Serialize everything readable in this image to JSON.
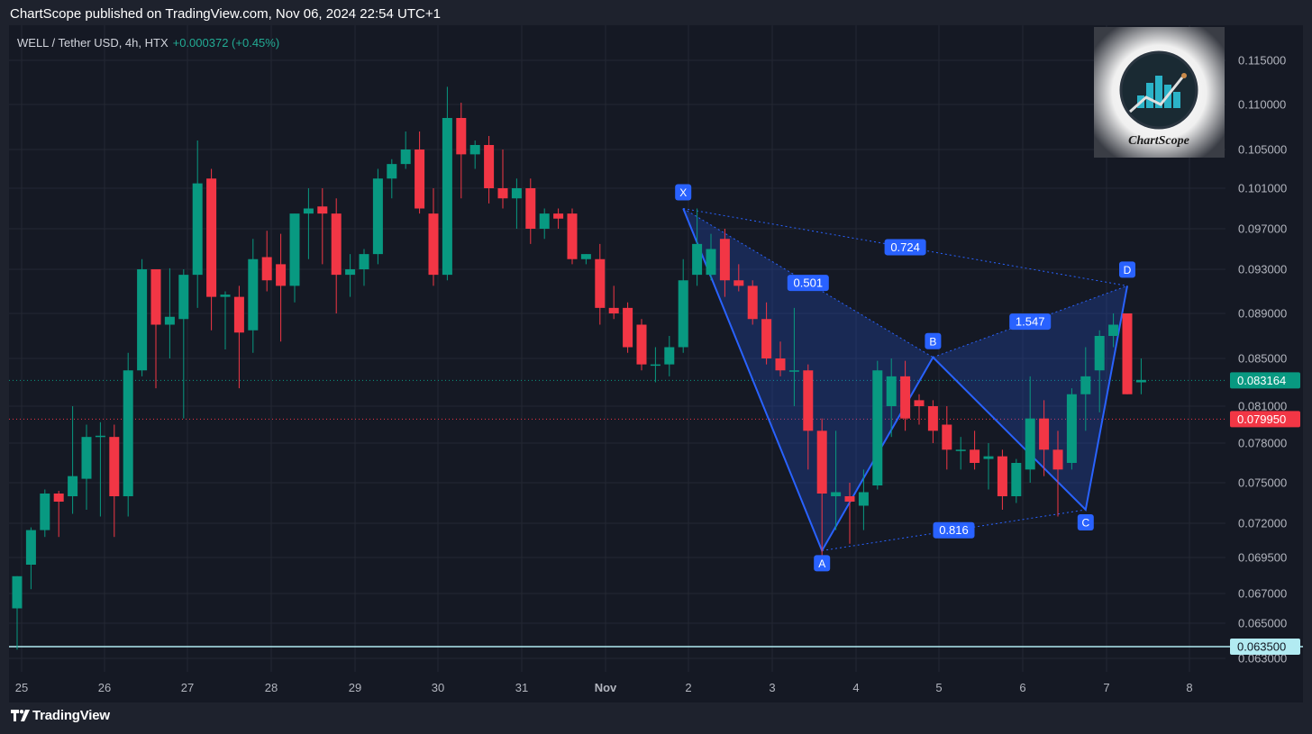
{
  "header": {
    "published_text": "ChartScope published on TradingView.com, Nov 06, 2024 22:54 UTC+1"
  },
  "legend": {
    "symbol_line": "WELL / Tether USD, 4h, HTX",
    "change": "+0.000372 (+0.45%)"
  },
  "brand": {
    "watermark_text": "ChartScope",
    "footer_text": "TradingView"
  },
  "colors": {
    "up": "#089981",
    "down": "#f23645",
    "pattern": "#2962ff",
    "background": "#151924",
    "text": "#b2b5be"
  },
  "chart_data": {
    "type": "candlestick",
    "title": "",
    "xlabel": "",
    "ylabel": "",
    "y_axis_ticks": [
      "0.115000",
      "0.110000",
      "0.105000",
      "0.101000",
      "0.097000",
      "0.093000",
      "0.089000",
      "0.085000",
      "0.081000",
      "0.078000",
      "0.075000",
      "0.072000",
      "0.069500",
      "0.067000",
      "0.065000",
      "0.063000"
    ],
    "x_axis_ticks": [
      "25",
      "26",
      "27",
      "28",
      "29",
      "30",
      "31",
      "Nov",
      "2",
      "3",
      "4",
      "5",
      "6",
      "7",
      "8"
    ],
    "grid": true,
    "price_labels": {
      "last": "0.083164",
      "marker": "0.079950",
      "support": "0.063500"
    },
    "candles": [
      {
        "o": 0.066,
        "h": 0.0682,
        "l": 0.0635,
        "c": 0.0682
      },
      {
        "o": 0.069,
        "h": 0.0717,
        "l": 0.0673,
        "c": 0.0715
      },
      {
        "o": 0.0715,
        "h": 0.0745,
        "l": 0.071,
        "c": 0.0742
      },
      {
        "o": 0.0742,
        "h": 0.0744,
        "l": 0.071,
        "c": 0.0736
      },
      {
        "o": 0.074,
        "h": 0.081,
        "l": 0.0727,
        "c": 0.0755
      },
      {
        "o": 0.0753,
        "h": 0.0795,
        "l": 0.073,
        "c": 0.0785
      },
      {
        "o": 0.0786,
        "h": 0.0797,
        "l": 0.0725,
        "c": 0.0786
      },
      {
        "o": 0.0785,
        "h": 0.0795,
        "l": 0.071,
        "c": 0.074
      },
      {
        "o": 0.074,
        "h": 0.0855,
        "l": 0.0725,
        "c": 0.084
      },
      {
        "o": 0.084,
        "h": 0.094,
        "l": 0.0835,
        "c": 0.093
      },
      {
        "o": 0.093,
        "h": 0.093,
        "l": 0.0825,
        "c": 0.088
      },
      {
        "o": 0.088,
        "h": 0.0931,
        "l": 0.085,
        "c": 0.0887
      },
      {
        "o": 0.0885,
        "h": 0.093,
        "l": 0.08,
        "c": 0.0925
      },
      {
        "o": 0.0925,
        "h": 0.106,
        "l": 0.0895,
        "c": 0.1015
      },
      {
        "o": 0.102,
        "h": 0.103,
        "l": 0.0875,
        "c": 0.0905
      },
      {
        "o": 0.0905,
        "h": 0.091,
        "l": 0.0858,
        "c": 0.0907
      },
      {
        "o": 0.0905,
        "h": 0.0915,
        "l": 0.0825,
        "c": 0.0873
      },
      {
        "o": 0.0875,
        "h": 0.096,
        "l": 0.0855,
        "c": 0.094
      },
      {
        "o": 0.0942,
        "h": 0.0968,
        "l": 0.091,
        "c": 0.092
      },
      {
        "o": 0.0935,
        "h": 0.0965,
        "l": 0.0865,
        "c": 0.0915
      },
      {
        "o": 0.0915,
        "h": 0.0985,
        "l": 0.09,
        "c": 0.0985
      },
      {
        "o": 0.0985,
        "h": 0.101,
        "l": 0.094,
        "c": 0.099
      },
      {
        "o": 0.0992,
        "h": 0.101,
        "l": 0.0935,
        "c": 0.0985
      },
      {
        "o": 0.0985,
        "h": 0.1,
        "l": 0.089,
        "c": 0.0925
      },
      {
        "o": 0.0925,
        "h": 0.0945,
        "l": 0.0905,
        "c": 0.093
      },
      {
        "o": 0.093,
        "h": 0.095,
        "l": 0.0915,
        "c": 0.0945
      },
      {
        "o": 0.0945,
        "h": 0.103,
        "l": 0.0935,
        "c": 0.102
      },
      {
        "o": 0.102,
        "h": 0.104,
        "l": 0.1,
        "c": 0.1035
      },
      {
        "o": 0.1035,
        "h": 0.107,
        "l": 0.103,
        "c": 0.105
      },
      {
        "o": 0.105,
        "h": 0.107,
        "l": 0.0985,
        "c": 0.099
      },
      {
        "o": 0.0985,
        "h": 0.101,
        "l": 0.0915,
        "c": 0.0925
      },
      {
        "o": 0.0925,
        "h": 0.112,
        "l": 0.092,
        "c": 0.1085
      },
      {
        "o": 0.1085,
        "h": 0.1102,
        "l": 0.1,
        "c": 0.1045
      },
      {
        "o": 0.1045,
        "h": 0.106,
        "l": 0.103,
        "c": 0.1055
      },
      {
        "o": 0.1055,
        "h": 0.1065,
        "l": 0.0995,
        "c": 0.101
      },
      {
        "o": 0.101,
        "h": 0.105,
        "l": 0.099,
        "c": 0.1
      },
      {
        "o": 0.1,
        "h": 0.102,
        "l": 0.097,
        "c": 0.101
      },
      {
        "o": 0.101,
        "h": 0.102,
        "l": 0.0955,
        "c": 0.097
      },
      {
        "o": 0.097,
        "h": 0.099,
        "l": 0.096,
        "c": 0.0985
      },
      {
        "o": 0.0985,
        "h": 0.099,
        "l": 0.097,
        "c": 0.098
      },
      {
        "o": 0.0985,
        "h": 0.099,
        "l": 0.0935,
        "c": 0.094
      },
      {
        "o": 0.094,
        "h": 0.0945,
        "l": 0.0935,
        "c": 0.0945
      },
      {
        "o": 0.094,
        "h": 0.0955,
        "l": 0.088,
        "c": 0.0895
      },
      {
        "o": 0.0895,
        "h": 0.0915,
        "l": 0.0885,
        "c": 0.089
      },
      {
        "o": 0.0895,
        "h": 0.09,
        "l": 0.0855,
        "c": 0.086
      },
      {
        "o": 0.088,
        "h": 0.0885,
        "l": 0.084,
        "c": 0.0845
      },
      {
        "o": 0.0845,
        "h": 0.086,
        "l": 0.083,
        "c": 0.0845
      },
      {
        "o": 0.0845,
        "h": 0.087,
        "l": 0.0835,
        "c": 0.086
      },
      {
        "o": 0.086,
        "h": 0.094,
        "l": 0.0855,
        "c": 0.092
      },
      {
        "o": 0.0925,
        "h": 0.099,
        "l": 0.0915,
        "c": 0.0955
      },
      {
        "o": 0.0925,
        "h": 0.0965,
        "l": 0.092,
        "c": 0.095
      },
      {
        "o": 0.096,
        "h": 0.097,
        "l": 0.0905,
        "c": 0.092
      },
      {
        "o": 0.092,
        "h": 0.0935,
        "l": 0.091,
        "c": 0.0915
      },
      {
        "o": 0.0915,
        "h": 0.092,
        "l": 0.088,
        "c": 0.0885
      },
      {
        "o": 0.0885,
        "h": 0.09,
        "l": 0.0845,
        "c": 0.085
      },
      {
        "o": 0.085,
        "h": 0.0865,
        "l": 0.0835,
        "c": 0.084
      },
      {
        "o": 0.084,
        "h": 0.0895,
        "l": 0.081,
        "c": 0.084
      },
      {
        "o": 0.084,
        "h": 0.0845,
        "l": 0.076,
        "c": 0.079
      },
      {
        "o": 0.079,
        "h": 0.08,
        "l": 0.0695,
        "c": 0.0742
      },
      {
        "o": 0.074,
        "h": 0.079,
        "l": 0.0715,
        "c": 0.0743
      },
      {
        "o": 0.074,
        "h": 0.075,
        "l": 0.0705,
        "c": 0.0736
      },
      {
        "o": 0.0733,
        "h": 0.076,
        "l": 0.0715,
        "c": 0.0743
      },
      {
        "o": 0.0748,
        "h": 0.0848,
        "l": 0.0745,
        "c": 0.084
      },
      {
        "o": 0.081,
        "h": 0.085,
        "l": 0.0785,
        "c": 0.0835
      },
      {
        "o": 0.0835,
        "h": 0.0848,
        "l": 0.079,
        "c": 0.08
      },
      {
        "o": 0.0815,
        "h": 0.082,
        "l": 0.0795,
        "c": 0.081
      },
      {
        "o": 0.081,
        "h": 0.0815,
        "l": 0.078,
        "c": 0.079
      },
      {
        "o": 0.0795,
        "h": 0.081,
        "l": 0.076,
        "c": 0.0775
      },
      {
        "o": 0.0775,
        "h": 0.0785,
        "l": 0.076,
        "c": 0.0775
      },
      {
        "o": 0.0775,
        "h": 0.079,
        "l": 0.076,
        "c": 0.0765
      },
      {
        "o": 0.0768,
        "h": 0.078,
        "l": 0.0745,
        "c": 0.077
      },
      {
        "o": 0.077,
        "h": 0.0775,
        "l": 0.073,
        "c": 0.074
      },
      {
        "o": 0.074,
        "h": 0.0768,
        "l": 0.0735,
        "c": 0.0765
      },
      {
        "o": 0.076,
        "h": 0.0835,
        "l": 0.075,
        "c": 0.08
      },
      {
        "o": 0.08,
        "h": 0.0815,
        "l": 0.0755,
        "c": 0.0775
      },
      {
        "o": 0.0775,
        "h": 0.079,
        "l": 0.0725,
        "c": 0.076
      },
      {
        "o": 0.0765,
        "h": 0.0825,
        "l": 0.076,
        "c": 0.082
      },
      {
        "o": 0.082,
        "h": 0.086,
        "l": 0.079,
        "c": 0.0835
      },
      {
        "o": 0.084,
        "h": 0.0875,
        "l": 0.0805,
        "c": 0.087
      },
      {
        "o": 0.087,
        "h": 0.089,
        "l": 0.086,
        "c": 0.088
      },
      {
        "o": 0.089,
        "h": 0.089,
        "l": 0.082,
        "c": 0.082
      },
      {
        "o": 0.083,
        "h": 0.085,
        "l": 0.082,
        "c": 0.0832
      }
    ],
    "harmonic_pattern": {
      "points": [
        {
          "label": "X",
          "candle": 48,
          "price": 0.099
        },
        {
          "label": "A",
          "candle": 58,
          "price": 0.07
        },
        {
          "label": "B",
          "candle": 66,
          "price": 0.0851
        },
        {
          "label": "C",
          "candle": 77,
          "price": 0.073
        },
        {
          "label": "D",
          "candle": 80,
          "price": 0.0915
        }
      ],
      "ratios": [
        "0.501",
        "0.724",
        "0.816",
        "1.547"
      ]
    }
  }
}
